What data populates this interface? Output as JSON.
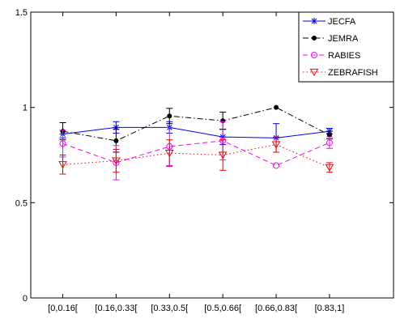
{
  "chart_data": {
    "type": "line",
    "categories": [
      "[0,0.16[",
      "[0.16,0.33[",
      "[0.33,0.5[",
      "[0.5,0.66[",
      "[0.66,0.83[",
      "[0.83,1]"
    ],
    "ylim": [
      0,
      1.5
    ],
    "yticks": [
      0,
      0.5,
      1,
      1.5
    ],
    "ytick_labels": [
      "0",
      "0.5",
      "1",
      "1.5"
    ],
    "grid": false,
    "legend": "top-right",
    "series": [
      {
        "name": "JECFA",
        "color": "#0000ff",
        "dash": "solid",
        "marker": "star",
        "values": [
          0.86,
          0.895,
          0.895,
          0.845,
          0.84,
          0.875
        ],
        "errors": [
          0.02,
          0.03,
          0.03,
          0.04,
          0.075,
          0.015
        ]
      },
      {
        "name": "JEMRA",
        "color": "#000000",
        "dash": "dashdot",
        "marker": "dot",
        "values": [
          0.875,
          0.825,
          0.955,
          0.93,
          1.0,
          0.855
        ],
        "errors": [
          0.045,
          0.06,
          0.04,
          0.045,
          0.0,
          0.02
        ]
      },
      {
        "name": "RABIES",
        "color": "#ff00ff",
        "dash": "dashed",
        "marker": "circle",
        "values": [
          0.81,
          0.71,
          0.795,
          0.825,
          0.695,
          0.815
        ],
        "errors": [
          0.07,
          0.09,
          0.1,
          0.1,
          0.0,
          0.03
        ]
      },
      {
        "name": "ZEBRAFISH",
        "color": "#ff0000",
        "dash": "dotted",
        "marker": "triangle-down",
        "values": [
          0.7,
          0.72,
          0.76,
          0.75,
          0.805,
          0.685
        ],
        "errors": [
          0.05,
          0.06,
          0.07,
          0.08,
          0.04,
          0.025
        ]
      }
    ]
  }
}
